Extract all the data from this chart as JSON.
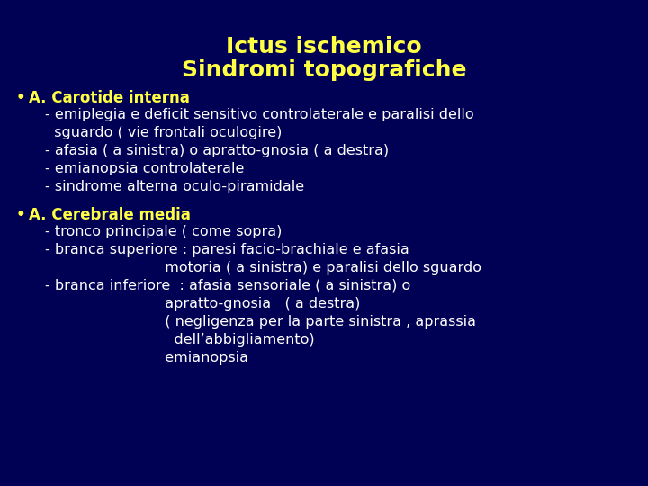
{
  "title_line1": "Ictus ischemico",
  "title_line2": "Sindromi topografiche",
  "title_color": "#ffff44",
  "title_fontsize": 18,
  "bg_color": "#000055",
  "bullet_color": "#ffff44",
  "heading_color": "#ffff44",
  "body_color": "#ffffff",
  "bullet1_heading": "A. Carotide interna",
  "bullet1_lines": [
    "- emiplegia e deficit sensitivo controlaterale e paralisi dello",
    "  sguardo ( vie frontali oculogire)",
    "- afasia ( a sinistra) o apratto-gnosia ( a destra)",
    "- emianopsia controlaterale",
    "- sindrome alterna oculo-piramidale"
  ],
  "bullet2_heading": "A. Cerebrale media",
  "bullet2_lines": [
    "- tronco principale ( come sopra)",
    "- branca superiore : paresi facio-brachiale e afasia",
    "                          motoria ( a sinistra) e paralisi dello sguardo",
    "- branca inferiore  : afasia sensoriale ( a sinistra) o",
    "                          apratto-gnosia   ( a destra)",
    "                          ( negligenza per la parte sinistra , aprassia",
    "                            dell’abbigliamento)",
    "                          emianopsia"
  ],
  "body_fontsize": 11.5,
  "heading_fontsize": 12,
  "bullet_fontsize": 12
}
